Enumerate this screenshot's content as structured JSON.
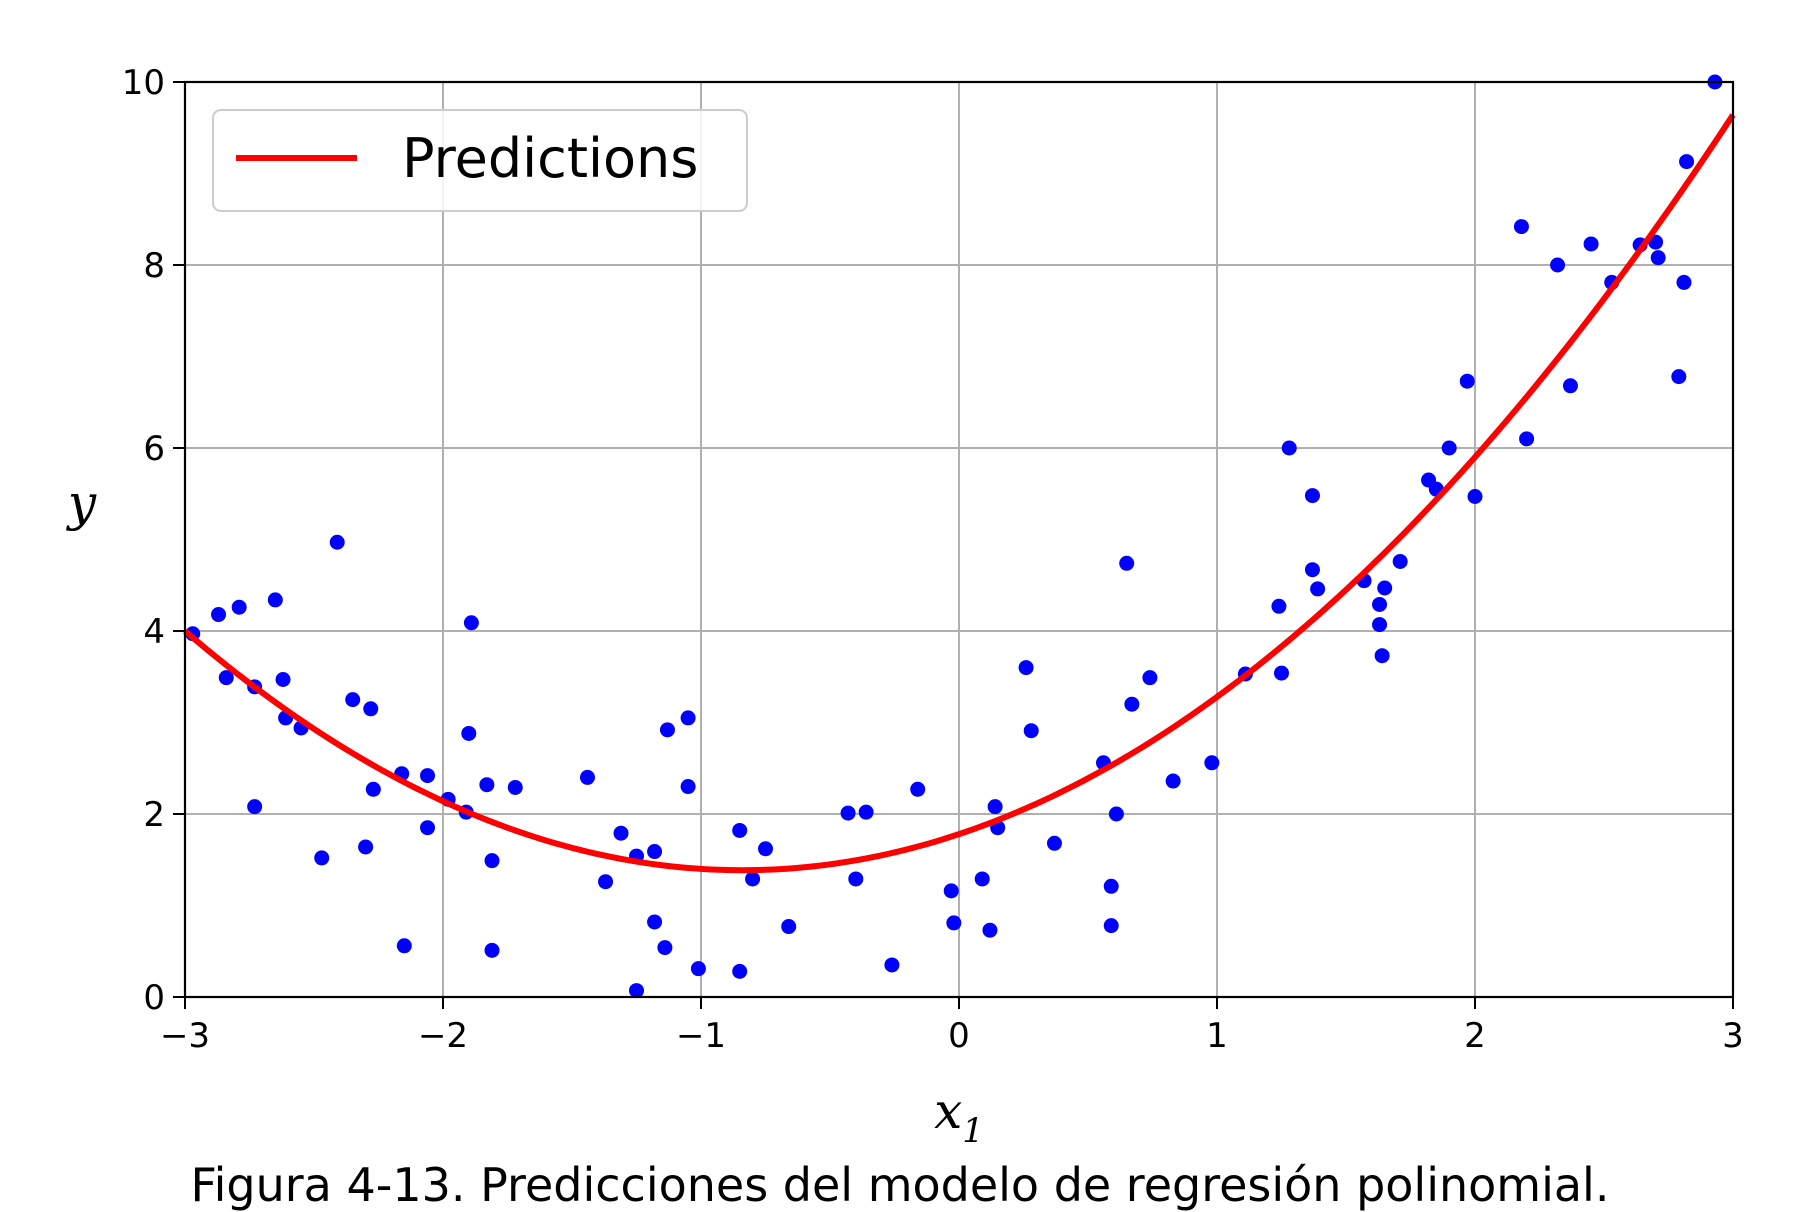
{
  "caption": "Figura 4-13. Predicciones del modelo de regresión polinomial.",
  "chart_data": {
    "type": "scatter",
    "xlabel": "x",
    "xlabel_sub": "1",
    "ylabel": "y",
    "xlim": [
      -3,
      3
    ],
    "ylim": [
      0,
      10
    ],
    "xticks": [
      -3,
      -2,
      -1,
      0,
      1,
      2,
      3
    ],
    "xtick_labels": [
      "−3",
      "−2",
      "−1",
      "0",
      "1",
      "2",
      "3"
    ],
    "yticks": [
      0,
      2,
      4,
      6,
      8,
      10
    ],
    "ytick_labels": [
      "0",
      "2",
      "4",
      "6",
      "8",
      "10"
    ],
    "grid": true,
    "legend": {
      "position": "top-left",
      "entries": [
        "Predictions"
      ]
    },
    "colors": {
      "points": "#0000ff",
      "line": "#ff0000",
      "grid": "#b0b0b0"
    },
    "series": [
      {
        "kind": "scatter",
        "points": [
          [
            -2.97,
            3.97
          ],
          [
            -2.87,
            4.18
          ],
          [
            -2.84,
            3.49
          ],
          [
            -2.79,
            4.26
          ],
          [
            -2.73,
            3.39
          ],
          [
            -2.73,
            2.08
          ],
          [
            -2.65,
            4.34
          ],
          [
            -2.62,
            3.47
          ],
          [
            -2.61,
            3.05
          ],
          [
            -2.55,
            2.94
          ],
          [
            -2.47,
            1.52
          ],
          [
            -2.41,
            4.97
          ],
          [
            -2.35,
            3.25
          ],
          [
            -2.3,
            1.64
          ],
          [
            -2.28,
            3.15
          ],
          [
            -2.27,
            2.27
          ],
          [
            -2.16,
            2.44
          ],
          [
            -2.15,
            0.56
          ],
          [
            -2.06,
            2.42
          ],
          [
            -2.06,
            1.85
          ],
          [
            -1.98,
            2.16
          ],
          [
            -1.91,
            2.02
          ],
          [
            -1.9,
            2.88
          ],
          [
            -1.89,
            4.09
          ],
          [
            -1.83,
            2.32
          ],
          [
            -1.81,
            1.49
          ],
          [
            -1.81,
            0.51
          ],
          [
            -1.72,
            2.29
          ],
          [
            -1.44,
            2.4
          ],
          [
            -1.37,
            1.26
          ],
          [
            -1.31,
            1.79
          ],
          [
            -1.25,
            1.54
          ],
          [
            -1.25,
            0.07
          ],
          [
            -1.18,
            1.59
          ],
          [
            -1.18,
            0.82
          ],
          [
            -1.14,
            0.54
          ],
          [
            -1.13,
            2.92
          ],
          [
            -1.05,
            3.05
          ],
          [
            -1.05,
            2.3
          ],
          [
            -1.01,
            0.31
          ],
          [
            -0.85,
            1.82
          ],
          [
            -0.85,
            0.28
          ],
          [
            -0.8,
            1.29
          ],
          [
            -0.75,
            1.62
          ],
          [
            -0.66,
            0.77
          ],
          [
            -0.43,
            2.01
          ],
          [
            -0.4,
            1.29
          ],
          [
            -0.36,
            2.02
          ],
          [
            -0.26,
            0.35
          ],
          [
            -0.16,
            2.27
          ],
          [
            -0.03,
            1.16
          ],
          [
            -0.02,
            0.81
          ],
          [
            0.09,
            1.29
          ],
          [
            0.12,
            0.73
          ],
          [
            0.14,
            2.08
          ],
          [
            0.15,
            1.85
          ],
          [
            0.26,
            3.6
          ],
          [
            0.28,
            2.91
          ],
          [
            0.37,
            1.68
          ],
          [
            0.56,
            2.56
          ],
          [
            0.59,
            1.21
          ],
          [
            0.59,
            0.78
          ],
          [
            0.61,
            2.0
          ],
          [
            0.65,
            4.74
          ],
          [
            0.67,
            3.2
          ],
          [
            0.74,
            3.49
          ],
          [
            0.83,
            2.36
          ],
          [
            0.98,
            2.56
          ],
          [
            1.11,
            3.53
          ],
          [
            1.24,
            4.27
          ],
          [
            1.25,
            3.54
          ],
          [
            1.28,
            6.0
          ],
          [
            1.37,
            5.48
          ],
          [
            1.37,
            4.67
          ],
          [
            1.39,
            4.46
          ],
          [
            1.57,
            4.55
          ],
          [
            1.63,
            4.29
          ],
          [
            1.63,
            4.07
          ],
          [
            1.64,
            3.73
          ],
          [
            1.65,
            4.47
          ],
          [
            1.71,
            4.76
          ],
          [
            1.82,
            5.65
          ],
          [
            1.85,
            5.55
          ],
          [
            1.9,
            6.0
          ],
          [
            1.97,
            6.73
          ],
          [
            2.0,
            5.47
          ],
          [
            2.18,
            8.42
          ],
          [
            2.2,
            6.1
          ],
          [
            2.32,
            8.0
          ],
          [
            2.37,
            6.68
          ],
          [
            2.45,
            8.23
          ],
          [
            2.53,
            7.81
          ],
          [
            2.64,
            8.22
          ],
          [
            2.7,
            8.25
          ],
          [
            2.71,
            8.08
          ],
          [
            2.79,
            6.78
          ],
          [
            2.81,
            7.81
          ],
          [
            2.82,
            9.13
          ],
          [
            2.93,
            10.0
          ]
        ]
      },
      {
        "kind": "line",
        "name": "Predictions",
        "model": {
          "a": 0.56,
          "b": 0.94,
          "c": 1.78
        },
        "x_range": [
          -3,
          3
        ]
      }
    ]
  }
}
